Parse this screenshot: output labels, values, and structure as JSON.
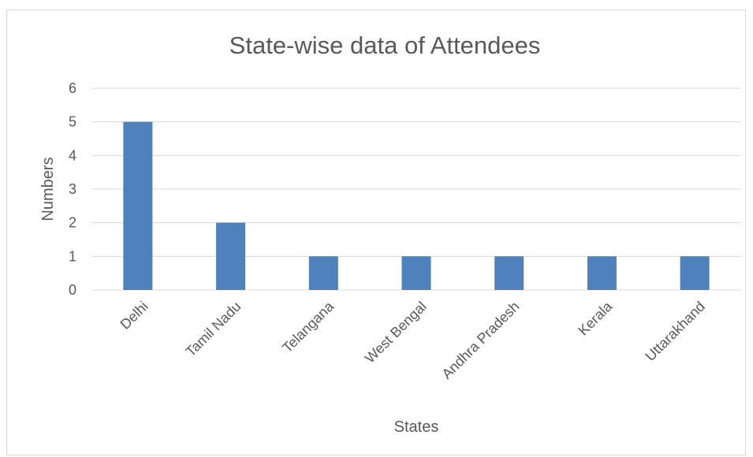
{
  "chart_data": {
    "type": "bar",
    "title": "State-wise data of Attendees",
    "xlabel": "States",
    "ylabel": "Numbers",
    "categories": [
      "Delhi",
      "Tamil Nadu",
      "Telangana",
      "West Bengal",
      "Andhra Pradesh",
      "Kerala",
      "Uttarakhand"
    ],
    "values": [
      5,
      2,
      1,
      1,
      1,
      1,
      1
    ],
    "ylim": [
      0,
      6
    ],
    "yticks": [
      "0",
      "1",
      "2",
      "3",
      "4",
      "5",
      "6"
    ],
    "grid": true,
    "legend": "none",
    "bar_color": "#4f81bd",
    "grid_color": "#d9d9d9"
  }
}
